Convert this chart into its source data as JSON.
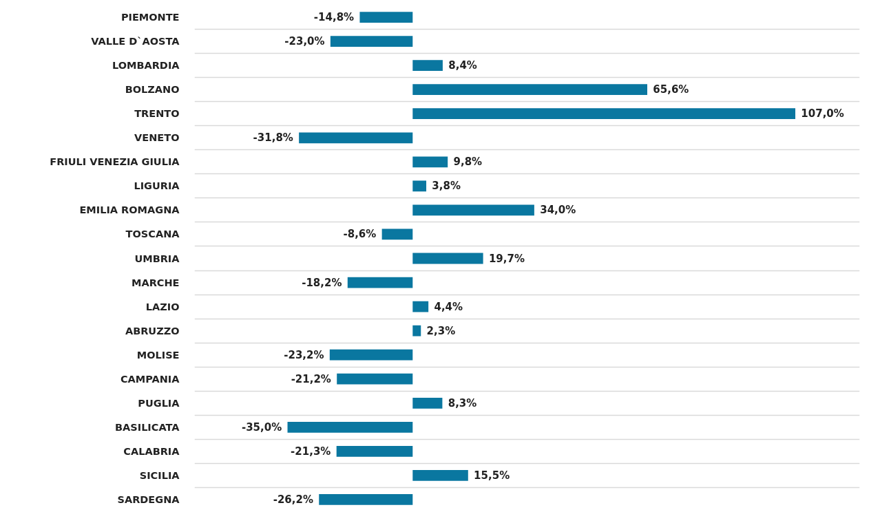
{
  "chart_data": {
    "type": "bar",
    "orientation": "horizontal",
    "categories": [
      "PIEMONTE",
      "VALLE D`AOSTA",
      "LOMBARDIA",
      "BOLZANO",
      "TRENTO",
      "VENETO",
      "FRIULI VENEZIA GIULIA",
      "LIGURIA",
      "EMILIA ROMAGNA",
      "TOSCANA",
      "UMBRIA",
      "MARCHE",
      "LAZIO",
      "ABRUZZO",
      "MOLISE",
      "CAMPANIA",
      "PUGLIA",
      "BASILICATA",
      "CALABRIA",
      "SICILIA",
      "SARDEGNA"
    ],
    "values": [
      -14.8,
      -23.0,
      8.4,
      65.6,
      107.0,
      -31.8,
      9.8,
      3.8,
      34.0,
      -8.6,
      19.7,
      -18.2,
      4.4,
      2.3,
      -23.2,
      -21.2,
      8.3,
      -35.0,
      -21.3,
      15.5,
      -26.2
    ],
    "value_labels": [
      "-14,8%",
      "-23,0%",
      "8,4%",
      "65,6%",
      "107,0%",
      "-31,8%",
      "9,8%",
      "3,8%",
      "34,0%",
      "-8,6%",
      "19,7%",
      "-18,2%",
      "4,4%",
      "2,3%",
      "-23,2%",
      "-21,2%",
      "8,3%",
      "-35,0%",
      "-21,3%",
      "15,5%",
      "-26,2%"
    ],
    "color": "#0a77a0",
    "xlim": [
      -61,
      125
    ],
    "tick_labels": "y",
    "grid": "y"
  }
}
